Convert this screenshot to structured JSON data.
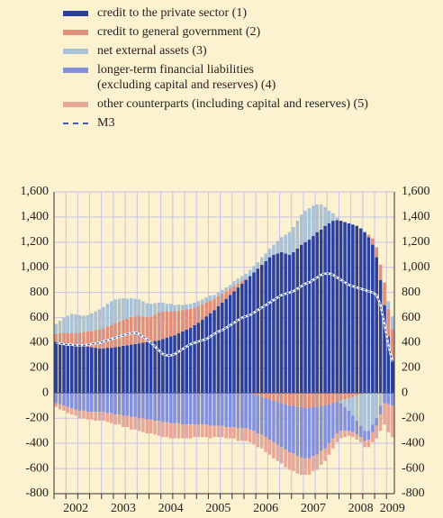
{
  "chart_data": {
    "type": "bar",
    "categories": [
      null,
      null,
      null,
      null,
      null,
      "2002",
      null,
      null,
      null,
      null,
      null,
      null,
      null,
      null,
      null,
      null,
      null,
      "2003",
      null,
      null,
      null,
      null,
      null,
      null,
      null,
      null,
      null,
      null,
      null,
      "2004",
      null,
      null,
      null,
      null,
      null,
      null,
      null,
      null,
      null,
      null,
      null,
      "2005",
      null,
      null,
      null,
      null,
      null,
      null,
      null,
      null,
      null,
      null,
      null,
      "2006",
      null,
      null,
      null,
      null,
      null,
      null,
      null,
      null,
      null,
      null,
      null,
      "2007",
      null,
      null,
      null,
      null,
      null,
      null,
      null,
      null,
      null,
      null,
      null,
      "2008",
      null,
      null,
      null,
      null,
      null,
      null,
      null,
      "2009"
    ],
    "series": [
      {
        "name": "credit to the private sector (1)",
        "color": "#2b3f9c",
        "values": [
          410,
          405,
          400,
          395,
          390,
          385,
          380,
          375,
          370,
          365,
          360,
          355,
          355,
          360,
          360,
          365,
          370,
          375,
          380,
          385,
          390,
          395,
          400,
          405,
          410,
          415,
          420,
          430,
          440,
          450,
          460,
          475,
          490,
          505,
          520,
          540,
          560,
          585,
          610,
          635,
          660,
          690,
          720,
          750,
          780,
          810,
          840,
          870,
          900,
          930,
          960,
          990,
          1020,
          1050,
          1080,
          1100,
          1110,
          1120,
          1110,
          1100,
          1120,
          1150,
          1180,
          1200,
          1220,
          1250,
          1280,
          1300,
          1330,
          1350,
          1370,
          1375,
          1370,
          1360,
          1350,
          1340,
          1330,
          1310,
          1280,
          1240,
          1180,
          1080,
          900,
          700,
          450,
          260
        ]
      },
      {
        "name": "credit to general government (2)",
        "color": "#e0907a",
        "values": [
          60,
          70,
          80,
          80,
          90,
          90,
          100,
          110,
          120,
          130,
          140,
          150,
          160,
          170,
          180,
          190,
          200,
          210,
          210,
          220,
          220,
          220,
          210,
          200,
          200,
          210,
          220,
          220,
          210,
          200,
          190,
          180,
          170,
          160,
          150,
          140,
          130,
          120,
          110,
          100,
          90,
          80,
          70,
          60,
          50,
          40,
          30,
          20,
          10,
          0,
          -10,
          -20,
          -30,
          -40,
          -50,
          -60,
          -70,
          -80,
          -90,
          -100,
          -100,
          -110,
          -110,
          -120,
          -120,
          -110,
          -110,
          -100,
          -100,
          -90,
          -80,
          -70,
          -60,
          -50,
          -40,
          -30,
          -20,
          -10,
          0,
          20,
          50,
          80,
          120,
          180,
          220,
          250
        ]
      },
      {
        "name": "net external assets (3)",
        "color": "#a9c2d6",
        "values": [
          80,
          100,
          120,
          140,
          150,
          150,
          140,
          130,
          130,
          140,
          150,
          160,
          170,
          180,
          190,
          190,
          180,
          170,
          160,
          150,
          140,
          130,
          120,
          110,
          100,
          90,
          80,
          70,
          60,
          60,
          50,
          50,
          40,
          40,
          40,
          40,
          40,
          40,
          40,
          40,
          30,
          30,
          30,
          30,
          30,
          40,
          40,
          40,
          40,
          50,
          50,
          50,
          60,
          60,
          70,
          80,
          100,
          120,
          150,
          180,
          200,
          220,
          240,
          250,
          250,
          240,
          220,
          200,
          150,
          100,
          60,
          20,
          -20,
          -60,
          -100,
          -150,
          -200,
          -250,
          -300,
          -300,
          -250,
          -200,
          -100,
          0,
          60,
          100
        ]
      },
      {
        "name": "longer-term financial liabilities (excluding capital and reserves) (4)",
        "color": "#8391db",
        "values": [
          -80,
          -90,
          -100,
          -110,
          -120,
          -130,
          -140,
          -140,
          -150,
          -150,
          -150,
          -150,
          -150,
          -160,
          -160,
          -170,
          -170,
          -180,
          -180,
          -190,
          -190,
          -200,
          -200,
          -210,
          -210,
          -220,
          -220,
          -230,
          -230,
          -240,
          -240,
          -240,
          -250,
          -250,
          -250,
          -250,
          -250,
          -250,
          -250,
          -260,
          -260,
          -260,
          -260,
          -270,
          -270,
          -270,
          -280,
          -280,
          -280,
          -290,
          -290,
          -300,
          -300,
          -310,
          -320,
          -330,
          -340,
          -350,
          -360,
          -370,
          -380,
          -390,
          -400,
          -400,
          -400,
          -390,
          -380,
          -360,
          -340,
          -310,
          -280,
          -250,
          -220,
          -190,
          -160,
          -130,
          -110,
          -90,
          -80,
          -70,
          -60,
          -60,
          -70,
          -80,
          -90,
          -100
        ]
      },
      {
        "name": "other counterparts (including capital and reserves) (5)",
        "color": "#e8a898",
        "values": [
          -30,
          -40,
          -40,
          -50,
          -50,
          -50,
          -60,
          -60,
          -60,
          -60,
          -70,
          -70,
          -70,
          -70,
          -80,
          -80,
          -80,
          -90,
          -90,
          -100,
          -100,
          -100,
          -110,
          -110,
          -110,
          -110,
          -120,
          -120,
          -120,
          -120,
          -120,
          -120,
          -110,
          -110,
          -110,
          -100,
          -100,
          -100,
          -100,
          -100,
          -90,
          -90,
          -90,
          -90,
          -90,
          -90,
          -100,
          -100,
          -100,
          -100,
          -110,
          -110,
          -110,
          -120,
          -120,
          -130,
          -130,
          -130,
          -140,
          -140,
          -140,
          -140,
          -140,
          -130,
          -130,
          -120,
          -120,
          -110,
          -100,
          -90,
          -80,
          -70,
          -60,
          -50,
          -40,
          -40,
          -40,
          -40,
          -50,
          -60,
          -80,
          -100,
          -130,
          -170,
          -220,
          -250
        ]
      }
    ],
    "line": {
      "name": "M3",
      "color": "#3a5fa8",
      "values": [
        400,
        395,
        390,
        385,
        385,
        380,
        380,
        380,
        385,
        390,
        395,
        400,
        410,
        420,
        430,
        440,
        450,
        460,
        470,
        475,
        480,
        470,
        450,
        430,
        400,
        370,
        340,
        310,
        300,
        300,
        310,
        330,
        350,
        370,
        390,
        400,
        410,
        420,
        430,
        450,
        470,
        490,
        500,
        520,
        540,
        560,
        580,
        600,
        610,
        620,
        640,
        660,
        680,
        700,
        720,
        740,
        760,
        780,
        790,
        800,
        810,
        830,
        850,
        870,
        880,
        900,
        920,
        940,
        950,
        950,
        940,
        920,
        900,
        880,
        860,
        850,
        840,
        830,
        820,
        810,
        800,
        780,
        700,
        550,
        380,
        250
      ]
    },
    "ylim": [
      -800,
      1600
    ],
    "yticks": [
      {
        "value": 1600,
        "label": "1,600"
      },
      {
        "value": 1400,
        "label": "1,400"
      },
      {
        "value": 1200,
        "label": "1,200"
      },
      {
        "value": 1000,
        "label": "1,000"
      },
      800,
      600,
      400,
      200,
      0,
      -200,
      -400,
      -600,
      -800
    ],
    "grid": true,
    "stacked": true
  }
}
